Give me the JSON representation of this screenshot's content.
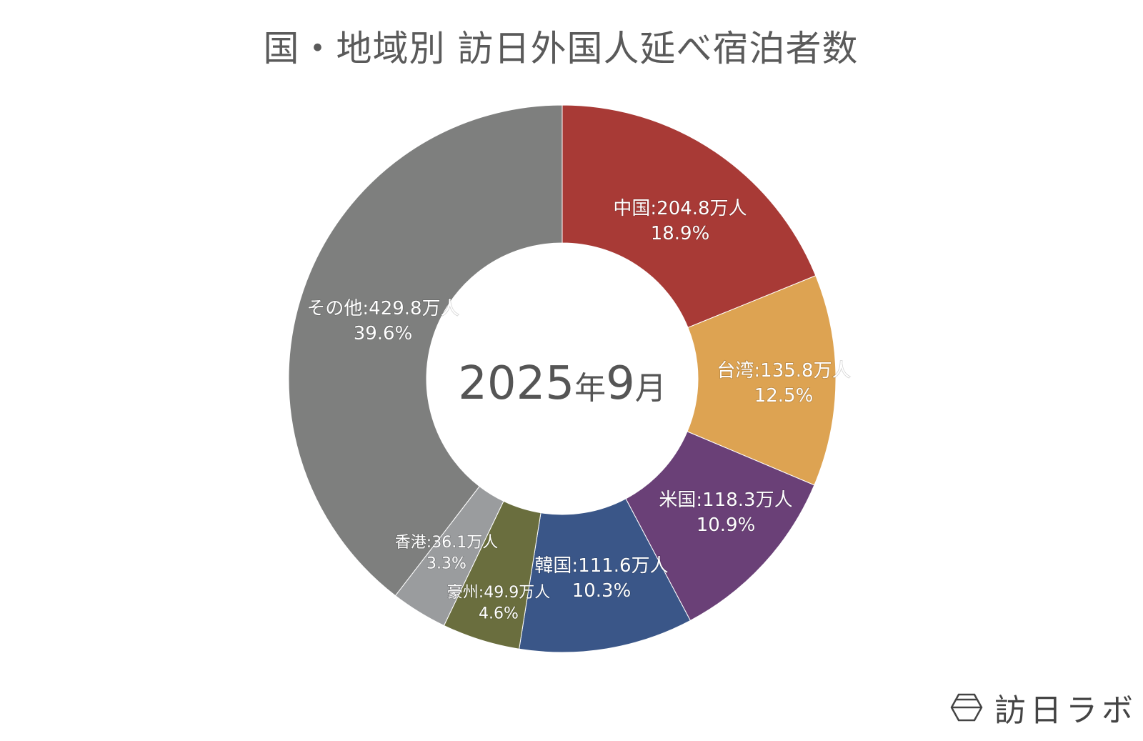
{
  "title": "国・地域別 訪日外国人延べ宿泊者数",
  "center_label": {
    "year": "2025",
    "year_unit": "年",
    "month": "9",
    "month_unit": "月"
  },
  "logo": {
    "text": "訪日ラボ"
  },
  "chart_data": {
    "type": "pie",
    "donut": true,
    "unit": "万人",
    "start": "top, clockwise",
    "slices": [
      {
        "label": "中国",
        "value": 204.8,
        "percent": "18.9%",
        "text": "中国:204.8万人",
        "color": "#A83A36"
      },
      {
        "label": "台湾",
        "value": 135.8,
        "percent": "12.5%",
        "text": "台湾:135.8万人",
        "color": "#DDA352"
      },
      {
        "label": "米国",
        "value": 118.3,
        "percent": "10.9%",
        "text": "米国:118.3万人",
        "color": "#6A4077"
      },
      {
        "label": "韓国",
        "value": 111.6,
        "percent": "10.3%",
        "text": "韓国:111.6万人",
        "color": "#3A5688"
      },
      {
        "label": "豪州",
        "value": 49.9,
        "percent": "4.6%",
        "text": "豪州:49.9万人",
        "color": "#6A6E3E"
      },
      {
        "label": "香港",
        "value": 36.1,
        "percent": "3.3%",
        "text": "香港:36.1万人",
        "color": "#9A9C9E"
      },
      {
        "label": "その他",
        "value": 429.8,
        "percent": "39.6%",
        "text": "その他:429.8万人",
        "color": "#7E7F7E"
      }
    ]
  }
}
